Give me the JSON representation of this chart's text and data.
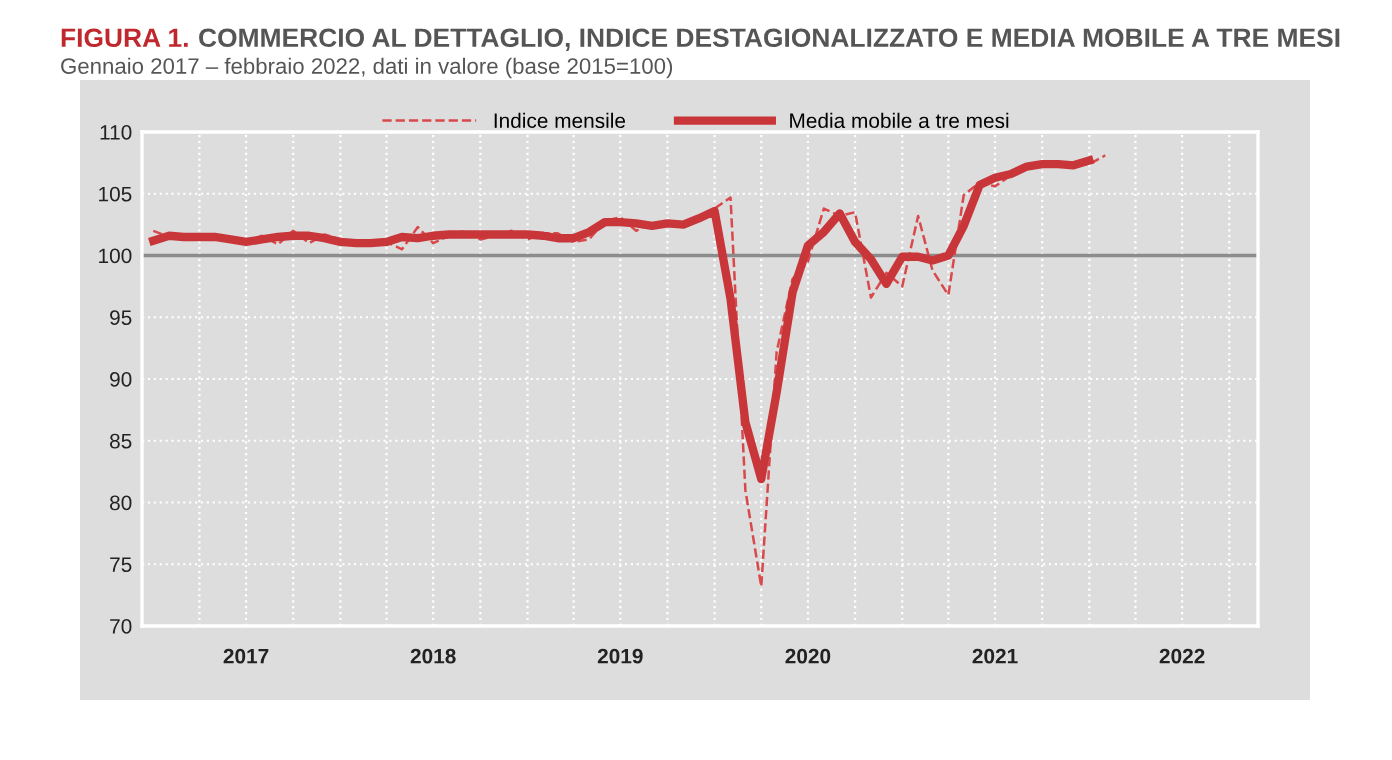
{
  "chart_data": {
    "type": "line",
    "title": "COMMERCIO AL DETTAGLIO, INDICE DESTAGIONALIZZATO E MEDIA MOBILE A TRE MESI",
    "subtitle": "Gennaio 2017 – febbraio 2022, dati in valore (base 2015=100)",
    "annotations": [
      "FIGURA 1."
    ],
    "x": [
      "2017-01",
      "2017-02",
      "2017-03",
      "2017-04",
      "2017-05",
      "2017-06",
      "2017-07",
      "2017-08",
      "2017-09",
      "2017-10",
      "2017-11",
      "2017-12",
      "2018-01",
      "2018-02",
      "2018-03",
      "2018-04",
      "2018-05",
      "2018-06",
      "2018-07",
      "2018-08",
      "2018-09",
      "2018-10",
      "2018-11",
      "2018-12",
      "2019-01",
      "2019-02",
      "2019-03",
      "2019-04",
      "2019-05",
      "2019-06",
      "2019-07",
      "2019-08",
      "2019-09",
      "2019-10",
      "2019-11",
      "2019-12",
      "2020-01",
      "2020-02",
      "2020-03",
      "2020-04",
      "2020-05",
      "2020-06",
      "2020-07",
      "2020-08",
      "2020-09",
      "2020-10",
      "2020-11",
      "2020-12",
      "2021-01",
      "2021-02",
      "2021-03",
      "2021-04",
      "2021-05",
      "2021-06",
      "2021-07",
      "2021-08",
      "2021-09",
      "2021-10",
      "2021-11",
      "2021-12",
      "2022-01",
      "2022-02"
    ],
    "series": [
      {
        "name": "Indice mensile",
        "color": "#d9484b",
        "line_style": "dashed",
        "values": [
          102.0,
          101.5,
          101.7,
          101.5,
          101.4,
          101.3,
          101.0,
          101.6,
          100.9,
          102.0,
          101.0,
          101.7,
          101.3,
          100.7,
          101.2,
          101.1,
          100.5,
          102.3,
          101.0,
          101.6,
          102.0,
          101.3,
          101.6,
          102.0,
          101.3,
          101.8,
          101.8,
          101.1,
          101.3,
          102.8,
          103.1,
          102.0,
          102.7,
          102.4,
          102.5,
          102.8,
          103.8,
          104.7,
          81.0,
          73.2,
          92.2,
          98.1,
          99.5,
          103.8,
          103.2,
          103.5,
          96.6,
          98.6,
          97.5,
          103.2,
          98.8,
          96.8,
          104.9,
          105.9,
          105.6,
          106.5,
          107.2,
          107.3,
          107.2,
          107.3,
          107.4,
          108.1
        ]
      },
      {
        "name": "Media mobile a tre mesi",
        "color": "#c8363a",
        "line_style": "solid",
        "values": [
          101.2,
          101.6,
          101.5,
          101.5,
          101.5,
          101.3,
          101.1,
          101.3,
          101.5,
          101.6,
          101.6,
          101.4,
          101.1,
          101.0,
          101.0,
          101.1,
          101.5,
          101.4,
          101.6,
          101.7,
          101.7,
          101.7,
          101.7,
          101.7,
          101.7,
          101.6,
          101.4,
          101.4,
          101.9,
          102.7,
          102.7,
          102.6,
          102.4,
          102.6,
          102.5,
          103.0,
          103.6,
          96.5,
          86.5,
          81.9,
          88.9,
          97.0,
          100.8,
          101.9,
          103.4,
          101.1,
          99.7,
          97.7,
          99.9,
          99.9,
          99.6,
          100.0,
          102.4,
          105.7,
          106.3,
          106.6,
          107.2,
          107.4,
          107.4,
          107.3,
          107.7,
          null
        ]
      }
    ],
    "xlim": [
      "2016-12-10",
      "2022-11-26"
    ],
    "xticks": [
      {
        "value": "2017-04-01",
        "label": null
      },
      {
        "value": "2017-07-01",
        "label": "2017"
      },
      {
        "value": "2017-10-01",
        "label": null
      },
      {
        "value": "2018-01-01",
        "label": null
      },
      {
        "value": "2018-04-01",
        "label": null
      },
      {
        "value": "2018-07-01",
        "label": "2018"
      },
      {
        "value": "2018-10-01",
        "label": null
      },
      {
        "value": "2019-01-01",
        "label": null
      },
      {
        "value": "2019-04-01",
        "label": null
      },
      {
        "value": "2019-07-01",
        "label": "2019"
      },
      {
        "value": "2019-10-01",
        "label": null
      },
      {
        "value": "2020-01-01",
        "label": null
      },
      {
        "value": "2020-04-01",
        "label": null
      },
      {
        "value": "2020-07-01",
        "label": "2020"
      },
      {
        "value": "2020-10-01",
        "label": null
      },
      {
        "value": "2021-01-01",
        "label": null
      },
      {
        "value": "2021-04-01",
        "label": null
      },
      {
        "value": "2021-07-01",
        "label": "2021"
      },
      {
        "value": "2021-10-01",
        "label": null
      },
      {
        "value": "2022-01-01",
        "label": null
      },
      {
        "value": "2022-04-01",
        "label": null
      },
      {
        "value": "2022-07-01",
        "label": "2022"
      },
      {
        "value": "2022-10-01",
        "label": null
      }
    ],
    "ylim": [
      70,
      110
    ],
    "yticks": [
      70,
      75,
      80,
      85,
      90,
      95,
      100,
      105,
      110
    ],
    "ref_lines": [
      {
        "axis": "y",
        "value": 100,
        "label": null,
        "color": "#8c8c8c"
      }
    ],
    "grid": true,
    "legend": "top",
    "marker": "none"
  }
}
